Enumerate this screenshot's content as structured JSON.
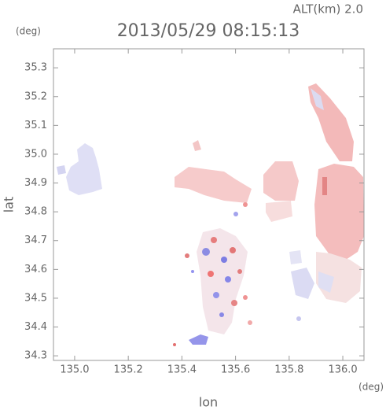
{
  "chart_data": {
    "type": "heatmap",
    "title": "2013/05/29 08:15:13",
    "annotation": "ALT(km) 2.0",
    "y_unit": "(deg)",
    "x_unit": "(deg)",
    "x_label": "lon",
    "y_label": "lat",
    "xlim": [
      134.921,
      136.079
    ],
    "ylim": [
      34.284,
      35.366
    ],
    "xticks": [
      {
        "value": 135,
        "label": "135.0"
      },
      135.2,
      135.4,
      135.6,
      135.8,
      {
        "value": 136,
        "label": "136.0"
      }
    ],
    "yticks": [
      34.3,
      34.4,
      34.5,
      34.6,
      34.7,
      34.8,
      34.9,
      {
        "value": 35,
        "label": "35.0"
      },
      35.1,
      35.2,
      35.3
    ]
  }
}
